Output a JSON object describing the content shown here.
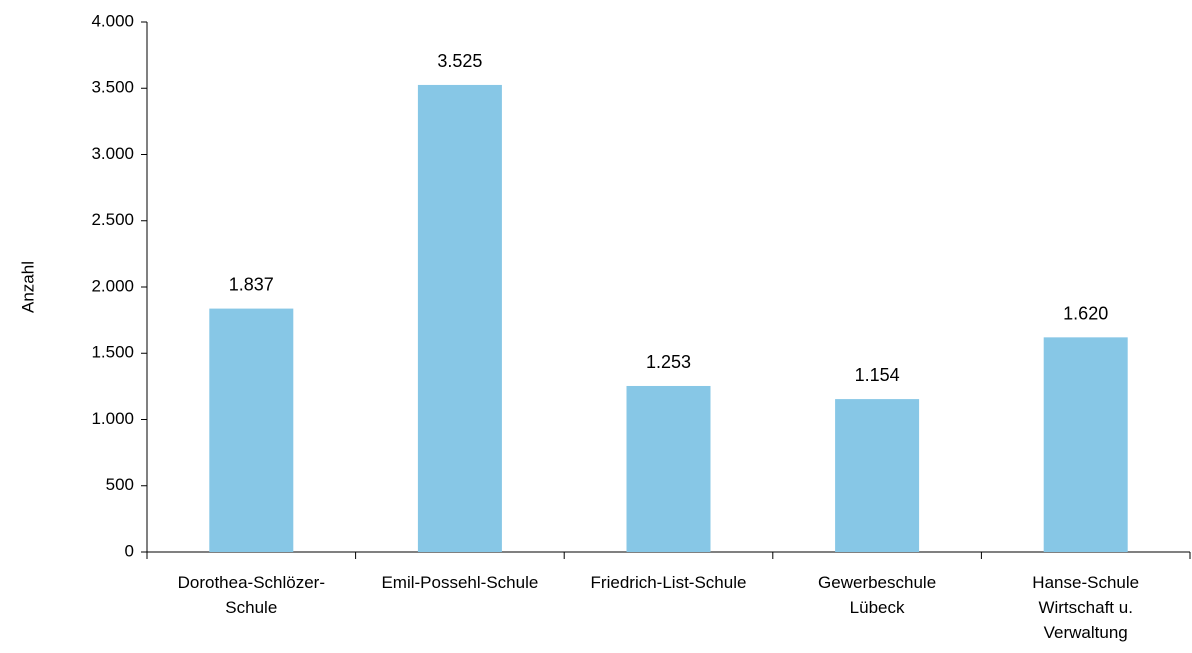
{
  "chart_data": {
    "type": "bar",
    "title": "",
    "xlabel": "",
    "ylabel": "Anzahl",
    "ylim": [
      0,
      4000
    ],
    "yticks": [
      0,
      500,
      1000,
      1500,
      2000,
      2500,
      3000,
      3500,
      4000
    ],
    "ytick_labels": [
      "0",
      "500",
      "1.000",
      "1.500",
      "2.000",
      "2.500",
      "3.000",
      "3.500",
      "4.000"
    ],
    "categories": [
      [
        "Dorothea-Schlözer-",
        "Schule"
      ],
      [
        "Emil-Possehl-Schule"
      ],
      [
        "Friedrich-List-Schule"
      ],
      [
        "Gewerbeschule",
        "Lübeck"
      ],
      [
        "Hanse-Schule",
        "Wirtschaft u.",
        "Verwaltung"
      ]
    ],
    "values": [
      1837,
      3525,
      1253,
      1154,
      1620
    ],
    "value_labels": [
      "1.837",
      "3.525",
      "1.253",
      "1.154",
      "1.620"
    ],
    "bar_color": "#87C7E6",
    "grid": false,
    "legend": "none"
  }
}
